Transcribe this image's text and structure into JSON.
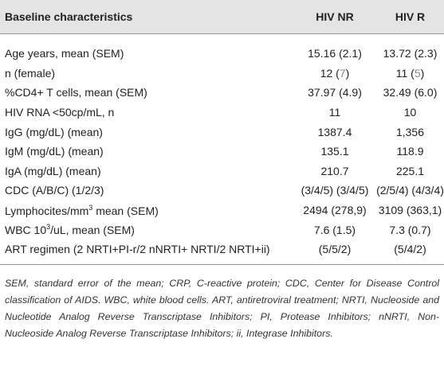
{
  "table": {
    "header": [
      [
        {
          "text": "Baseline characteristics"
        }
      ],
      [
        {
          "text": "HIV NR"
        }
      ],
      [
        {
          "text": "HIV R"
        }
      ]
    ],
    "rows": [
      [
        [
          {
            "text": "Age years, mean (SEM)"
          }
        ],
        [
          {
            "text": "15.16 (2.1)"
          }
        ],
        [
          {
            "text": "13.72 (2.3)"
          }
        ]
      ],
      [
        [
          {
            "text": "n (female)"
          }
        ],
        [
          {
            "text": "12 ("
          },
          {
            "text": "7",
            "color": "#8a8a8a"
          },
          {
            "text": ")"
          }
        ],
        [
          {
            "text": "11 ("
          },
          {
            "text": "5",
            "color": "#8a8a8a"
          },
          {
            "text": ")"
          }
        ]
      ],
      [
        [
          {
            "text": "%CD4+ T cells, mean (SEM)"
          }
        ],
        [
          {
            "text": "37.97 (4.9)"
          }
        ],
        [
          {
            "text": "32.49 (6.0)"
          }
        ]
      ],
      [
        [
          {
            "text": "HIV RNA <50cp/mL, n"
          }
        ],
        [
          {
            "text": "11"
          }
        ],
        [
          {
            "text": "10"
          }
        ]
      ],
      [
        [
          {
            "text": "IgG (mg/dL) (mean)"
          }
        ],
        [
          {
            "text": "1387.4"
          }
        ],
        [
          {
            "text": "1,356"
          }
        ]
      ],
      [
        [
          {
            "text": "IgM (mg/dL) (mean)"
          }
        ],
        [
          {
            "text": "135.1"
          }
        ],
        [
          {
            "text": "118.9"
          }
        ]
      ],
      [
        [
          {
            "text": "IgA (mg/dL) (mean)"
          }
        ],
        [
          {
            "text": "210.7"
          }
        ],
        [
          {
            "text": "225.1"
          }
        ]
      ],
      [
        [
          {
            "text": "CDC (A/B/C) (1/2/3)"
          }
        ],
        [
          {
            "text": "(3/4/5) (3/4/5)"
          }
        ],
        [
          {
            "text": "(2/5/4) (4/3/4)"
          }
        ]
      ],
      [
        [
          {
            "text": "Lymphocites/mm"
          },
          {
            "text": "3",
            "sup": true
          },
          {
            "text": " mean (SEM)"
          }
        ],
        [
          {
            "text": "2494 (278,9)"
          }
        ],
        [
          {
            "text": "3109 (363,1)"
          }
        ]
      ],
      [
        [
          {
            "text": "WBC 10"
          },
          {
            "text": "3",
            "sup": true
          },
          {
            "text": "/uL, mean (SEM)"
          }
        ],
        [
          {
            "text": "7.6 (1.5)"
          }
        ],
        [
          {
            "text": "7.3 (0.7)"
          }
        ]
      ],
      [
        [
          {
            "text": "ART regimen (2 NRTI+PI-r/2 nNRTI+ NRTI/2 NRTI+ii)"
          }
        ],
        [
          {
            "text": "(5/5/2)"
          }
        ],
        [
          {
            "text": "(5/4/2)"
          }
        ]
      ]
    ]
  },
  "footnote": "SEM, standard error of the mean; CRP, C-reactive protein; CDC, Center for Disease Control classification of AIDS. WBC, white blood cells. ART, antiretroviral treatment; NRTI, Nucleoside and Nucleotide Analog Reverse Transcriptase Inhibitors; PI, Protease Inhibitors; nNRTI, Non-Nucleoside Analog Reverse Transcriptase Inhibitors; ii, Integrase Inhibitors."
}
